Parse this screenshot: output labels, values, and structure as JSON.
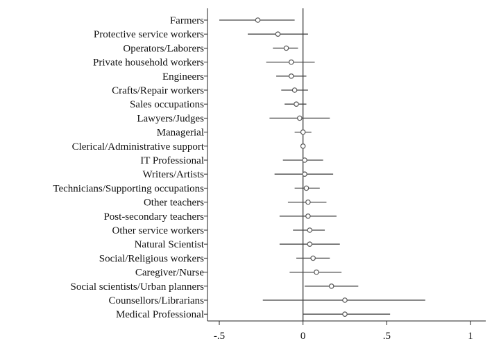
{
  "chart_data": {
    "type": "coefficient-plot",
    "orientation": "horizontal",
    "title": "",
    "xlabel": "",
    "ylabel": "",
    "xlim": [
      -0.5,
      1.0
    ],
    "reference_line_x": 0,
    "grid": false,
    "legend": "none",
    "x_ticks": [
      {
        "value": -0.5,
        "label": "-.5"
      },
      {
        "value": 0,
        "label": "0"
      },
      {
        "value": 0.5,
        "label": ".5"
      },
      {
        "value": 1,
        "label": "1"
      }
    ],
    "points": [
      {
        "label": "Farmers",
        "estimate": -0.27,
        "ci": [
          -0.5,
          -0.05
        ]
      },
      {
        "label": "Protective service workers",
        "estimate": -0.15,
        "ci": [
          -0.33,
          0.03
        ]
      },
      {
        "label": "Operators/Laborers",
        "estimate": -0.1,
        "ci": [
          -0.18,
          -0.03
        ]
      },
      {
        "label": "Private household workers",
        "estimate": -0.07,
        "ci": [
          -0.22,
          0.07
        ]
      },
      {
        "label": "Engineers",
        "estimate": -0.07,
        "ci": [
          -0.16,
          0.02
        ]
      },
      {
        "label": "Crafts/Repair workers",
        "estimate": -0.05,
        "ci": [
          -0.13,
          0.03
        ]
      },
      {
        "label": "Sales occupations",
        "estimate": -0.04,
        "ci": [
          -0.11,
          0.02
        ]
      },
      {
        "label": "Lawyers/Judges",
        "estimate": -0.02,
        "ci": [
          -0.2,
          0.16
        ]
      },
      {
        "label": "Managerial",
        "estimate": 0.0,
        "ci": [
          -0.05,
          0.05
        ]
      },
      {
        "label": "Clerical/Administrative support",
        "estimate": 0.0,
        "ci": [
          -0.01,
          0.01
        ]
      },
      {
        "label": "IT Professional",
        "estimate": 0.01,
        "ci": [
          -0.12,
          0.12
        ]
      },
      {
        "label": "Writers/Artists",
        "estimate": 0.01,
        "ci": [
          -0.17,
          0.18
        ]
      },
      {
        "label": "Technicians/Supporting occupations",
        "estimate": 0.02,
        "ci": [
          -0.05,
          0.1
        ]
      },
      {
        "label": "Other teachers",
        "estimate": 0.03,
        "ci": [
          -0.09,
          0.14
        ]
      },
      {
        "label": "Post-secondary teachers",
        "estimate": 0.03,
        "ci": [
          -0.14,
          0.2
        ]
      },
      {
        "label": "Other service workers",
        "estimate": 0.04,
        "ci": [
          -0.06,
          0.13
        ]
      },
      {
        "label": "Natural Scientist",
        "estimate": 0.04,
        "ci": [
          -0.14,
          0.22
        ]
      },
      {
        "label": "Social/Religious workers",
        "estimate": 0.06,
        "ci": [
          -0.04,
          0.16
        ]
      },
      {
        "label": "Caregiver/Nurse",
        "estimate": 0.08,
        "ci": [
          -0.08,
          0.23
        ]
      },
      {
        "label": "Social scientists/Urban planners",
        "estimate": 0.17,
        "ci": [
          0.01,
          0.33
        ]
      },
      {
        "label": "Counsellors/Librarians",
        "estimate": 0.25,
        "ci": [
          -0.24,
          0.73
        ]
      },
      {
        "label": "Medical Professional",
        "estimate": 0.25,
        "ci": [
          0.0,
          0.52
        ]
      }
    ]
  }
}
